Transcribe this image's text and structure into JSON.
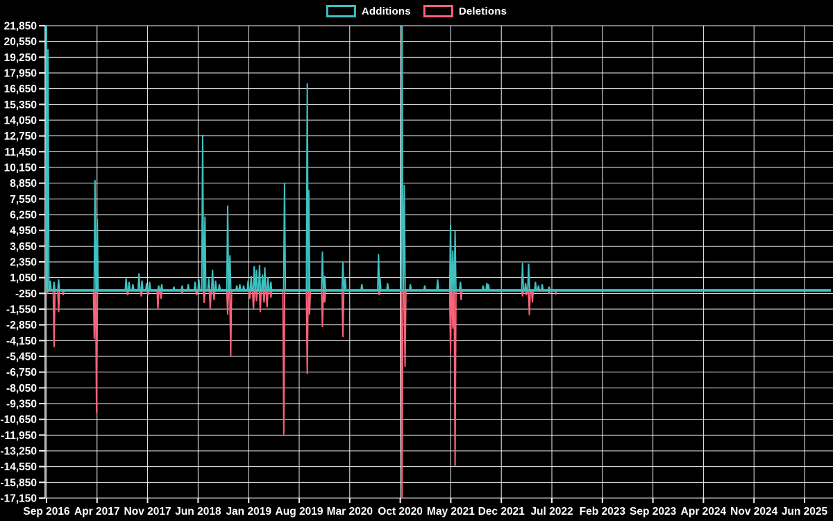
{
  "legend": {
    "additions": "Additions",
    "deletions": "Deletions"
  },
  "colors": {
    "background": "#000000",
    "grid": "#f2f2f2",
    "text": "#ffffff",
    "additions": "#3fc1c1",
    "deletions": "#fa6278",
    "zero_line": "#9fb6bd"
  },
  "chart_data": {
    "type": "line",
    "title": "",
    "xlabel": "",
    "ylabel": "",
    "grid": true,
    "legend_position": "top-center",
    "x_tick_labels": [
      "Sep 2016",
      "Apr 2017",
      "Nov 2017",
      "Jun 2018",
      "Jan 2019",
      "Aug 2019",
      "Mar 2020",
      "Oct 2020",
      "May 2021",
      "Dec 2021",
      "Jul 2022",
      "Feb 2023",
      "Sep 2023",
      "Apr 2024",
      "Nov 2024",
      "Jun 2025"
    ],
    "y_tick_labels": [
      "21,850",
      "20,550",
      "19,250",
      "17,950",
      "16,650",
      "15,350",
      "14,050",
      "12,750",
      "11,450",
      "10,150",
      "8,850",
      "7,550",
      "6,250",
      "4,950",
      "3,650",
      "2,350",
      "1,050",
      "-250",
      "-1,550",
      "-2,850",
      "-4,150",
      "-5,450",
      "-6,750",
      "-8,050",
      "-9,350",
      "-10,650",
      "-11,950",
      "-13,250",
      "-14,550",
      "-15,850",
      "-17,150"
    ],
    "y_max": 21850,
    "y_min": -17150,
    "y_step": 1300,
    "baseline_value": 0,
    "series": [
      {
        "name": "Additions",
        "color_key": "additions",
        "baseline": 0,
        "spikes": [
          [
            0.0,
            21900
          ],
          [
            0.002,
            19900
          ],
          [
            0.005,
            800
          ],
          [
            0.01,
            700
          ],
          [
            0.016,
            900
          ],
          [
            0.064,
            9100
          ],
          [
            0.067,
            5900
          ],
          [
            0.105,
            1000
          ],
          [
            0.109,
            700
          ],
          [
            0.114,
            500
          ],
          [
            0.122,
            1400
          ],
          [
            0.126,
            800
          ],
          [
            0.132,
            600
          ],
          [
            0.136,
            700
          ],
          [
            0.148,
            400
          ],
          [
            0.152,
            500
          ],
          [
            0.168,
            300
          ],
          [
            0.179,
            400
          ],
          [
            0.187,
            500
          ],
          [
            0.196,
            700
          ],
          [
            0.201,
            900
          ],
          [
            0.206,
            12850
          ],
          [
            0.209,
            6100
          ],
          [
            0.214,
            1000
          ],
          [
            0.219,
            1700
          ],
          [
            0.223,
            800
          ],
          [
            0.228,
            500
          ],
          [
            0.239,
            7000
          ],
          [
            0.242,
            2900
          ],
          [
            0.251,
            400
          ],
          [
            0.255,
            500
          ],
          [
            0.26,
            400
          ],
          [
            0.266,
            800
          ],
          [
            0.27,
            1200
          ],
          [
            0.274,
            2000
          ],
          [
            0.277,
            1700
          ],
          [
            0.281,
            2100
          ],
          [
            0.285,
            1300
          ],
          [
            0.288,
            1900
          ],
          [
            0.292,
            1100
          ],
          [
            0.296,
            700
          ],
          [
            0.314,
            8850
          ],
          [
            0.344,
            17100
          ],
          [
            0.346,
            8300
          ],
          [
            0.364,
            3200
          ],
          [
            0.367,
            1200
          ],
          [
            0.391,
            2300
          ],
          [
            0.394,
            1000
          ],
          [
            0.416,
            500
          ],
          [
            0.438,
            3000
          ],
          [
            0.44,
            1000
          ],
          [
            0.45,
            600
          ],
          [
            0.469,
            24000
          ],
          [
            0.472,
            8700
          ],
          [
            0.48,
            500
          ],
          [
            0.499,
            400
          ],
          [
            0.516,
            900
          ],
          [
            0.533,
            5400
          ],
          [
            0.536,
            3300
          ],
          [
            0.539,
            4900
          ],
          [
            0.546,
            700
          ],
          [
            0.576,
            400
          ],
          [
            0.581,
            600
          ],
          [
            0.583,
            500
          ],
          [
            0.628,
            2270
          ],
          [
            0.632,
            600
          ],
          [
            0.636,
            2200
          ],
          [
            0.645,
            700
          ],
          [
            0.649,
            400
          ],
          [
            0.654,
            500
          ],
          [
            0.663,
            300
          ]
        ]
      },
      {
        "name": "Deletions",
        "color_key": "deletions",
        "baseline": 0,
        "spikes": [
          [
            0.001,
            -300
          ],
          [
            0.01,
            -4700
          ],
          [
            0.016,
            -1800
          ],
          [
            0.022,
            -400
          ],
          [
            0.063,
            -4000
          ],
          [
            0.066,
            -10100
          ],
          [
            0.107,
            -400
          ],
          [
            0.125,
            -500
          ],
          [
            0.134,
            -400
          ],
          [
            0.147,
            -1550
          ],
          [
            0.151,
            -700
          ],
          [
            0.179,
            -300
          ],
          [
            0.198,
            -400
          ],
          [
            0.208,
            -1030
          ],
          [
            0.216,
            -1500
          ],
          [
            0.221,
            -800
          ],
          [
            0.239,
            -2000
          ],
          [
            0.243,
            -5440
          ],
          [
            0.268,
            -700
          ],
          [
            0.273,
            -1600
          ],
          [
            0.277,
            -900
          ],
          [
            0.282,
            -1800
          ],
          [
            0.287,
            -1000
          ],
          [
            0.291,
            -1400
          ],
          [
            0.296,
            -600
          ],
          [
            0.313,
            -11900
          ],
          [
            0.344,
            -6900
          ],
          [
            0.347,
            -2000
          ],
          [
            0.364,
            -3040
          ],
          [
            0.367,
            -1000
          ],
          [
            0.391,
            -3840
          ],
          [
            0.439,
            -400
          ],
          [
            0.469,
            -17100
          ],
          [
            0.473,
            -6300
          ],
          [
            0.533,
            -5200
          ],
          [
            0.536,
            -3170
          ],
          [
            0.539,
            -14500
          ],
          [
            0.547,
            -800
          ],
          [
            0.628,
            -500
          ],
          [
            0.633,
            -400
          ],
          [
            0.637,
            -2060
          ],
          [
            0.641,
            -1000
          ],
          [
            0.663,
            -300
          ],
          [
            0.672,
            -250
          ]
        ]
      }
    ]
  }
}
